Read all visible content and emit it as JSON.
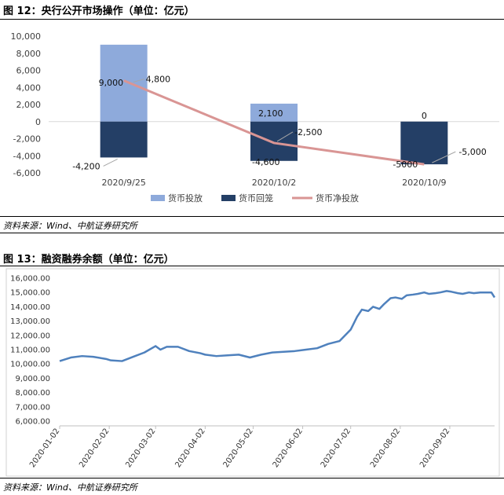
{
  "figure12": {
    "title": "图 12：央行公开市场操作（单位：亿元）",
    "source": "资料来源：Wind、中航证券研究所"
  },
  "figure13": {
    "title": "图 13：融资融券余额（单位：亿元）",
    "source": "资料来源：Wind、中航证券研究所"
  },
  "colors": {
    "injection": "#8eaadb",
    "withdrawal": "#243f66",
    "net": "#d99594",
    "line2": "#4f81bd"
  },
  "chart_data": [
    {
      "type": "bar",
      "categories": [
        "2020/9/25",
        "2020/10/2",
        "2020/10/9"
      ],
      "series": [
        {
          "name": "货币投放",
          "values": [
            9000,
            2100,
            0
          ],
          "labels": [
            "9,000",
            "2,100",
            "0"
          ]
        },
        {
          "name": "货币回笼",
          "values": [
            -4200,
            -4600,
            -5000
          ],
          "labels": [
            "-4,200",
            "-4,600",
            "-5000"
          ]
        },
        {
          "name": "货币净投放",
          "type": "line",
          "values": [
            4800,
            -2500,
            -5000
          ],
          "labels": [
            "4,800",
            "-2,500",
            "-5,000"
          ]
        }
      ],
      "ylim": [
        -6000,
        10000
      ],
      "yticks": [
        10000,
        8000,
        6000,
        4000,
        2000,
        0,
        -2000,
        -4000,
        -6000
      ],
      "ytick_labels": [
        "10,000",
        "8,000",
        "6,000",
        "4,000",
        "2,000",
        "0",
        "-2,000",
        "-4,000",
        "-6,000"
      ],
      "legend": "bottom",
      "grid": false
    },
    {
      "type": "line",
      "series": [
        {
          "name": "",
          "x": [
            "2020-01-02",
            "2020-01-09",
            "2020-01-16",
            "2020-01-23",
            "2020-01-31",
            "2020-02-03",
            "2020-02-10",
            "2020-02-17",
            "2020-02-24",
            "2020-03-02",
            "2020-03-05",
            "2020-03-09",
            "2020-03-16",
            "2020-03-23",
            "2020-03-30",
            "2020-04-02",
            "2020-04-09",
            "2020-04-16",
            "2020-04-23",
            "2020-04-30",
            "2020-05-07",
            "2020-05-14",
            "2020-05-21",
            "2020-05-28",
            "2020-06-04",
            "2020-06-11",
            "2020-06-18",
            "2020-06-25",
            "2020-07-02",
            "2020-07-06",
            "2020-07-09",
            "2020-07-13",
            "2020-07-16",
            "2020-07-20",
            "2020-07-23",
            "2020-07-27",
            "2020-07-30",
            "2020-08-03",
            "2020-08-06",
            "2020-08-10",
            "2020-08-13",
            "2020-08-17",
            "2020-08-20",
            "2020-08-24",
            "2020-08-27",
            "2020-08-31",
            "2020-09-03",
            "2020-09-07",
            "2020-09-10",
            "2020-09-14",
            "2020-09-17",
            "2020-09-21",
            "2020-09-24",
            "2020-09-28",
            "2020-09-30"
          ],
          "values": [
            10200,
            10450,
            10550,
            10500,
            10350,
            10250,
            10200,
            10500,
            10800,
            11250,
            11000,
            11200,
            11200,
            10900,
            10750,
            10650,
            10550,
            10600,
            10650,
            10450,
            10650,
            10800,
            10850,
            10900,
            11000,
            11100,
            11400,
            11600,
            12400,
            13300,
            13800,
            13700,
            14000,
            13850,
            14200,
            14600,
            14650,
            14550,
            14800,
            14850,
            14900,
            15000,
            14900,
            14950,
            15000,
            15100,
            15050,
            14950,
            14900,
            15000,
            14950,
            15000,
            15000,
            15000,
            14650
          ]
        }
      ],
      "ylim": [
        6000,
        16000
      ],
      "yticks": [
        "16,000.00",
        "15,000.00",
        "14,000.00",
        "13,000.00",
        "12,000.00",
        "11,000.00",
        "10,000.00",
        "9,000.00",
        "8,000.00",
        "7,000.00",
        "6,000.00"
      ],
      "xticks": [
        "2020-01-02",
        "2020-02-02",
        "2020-03-02",
        "2020-04-02",
        "2020-05-02",
        "2020-06-02",
        "2020-07-02",
        "2020-08-02",
        "2020-09-02"
      ],
      "grid": false,
      "legend": "none"
    }
  ]
}
